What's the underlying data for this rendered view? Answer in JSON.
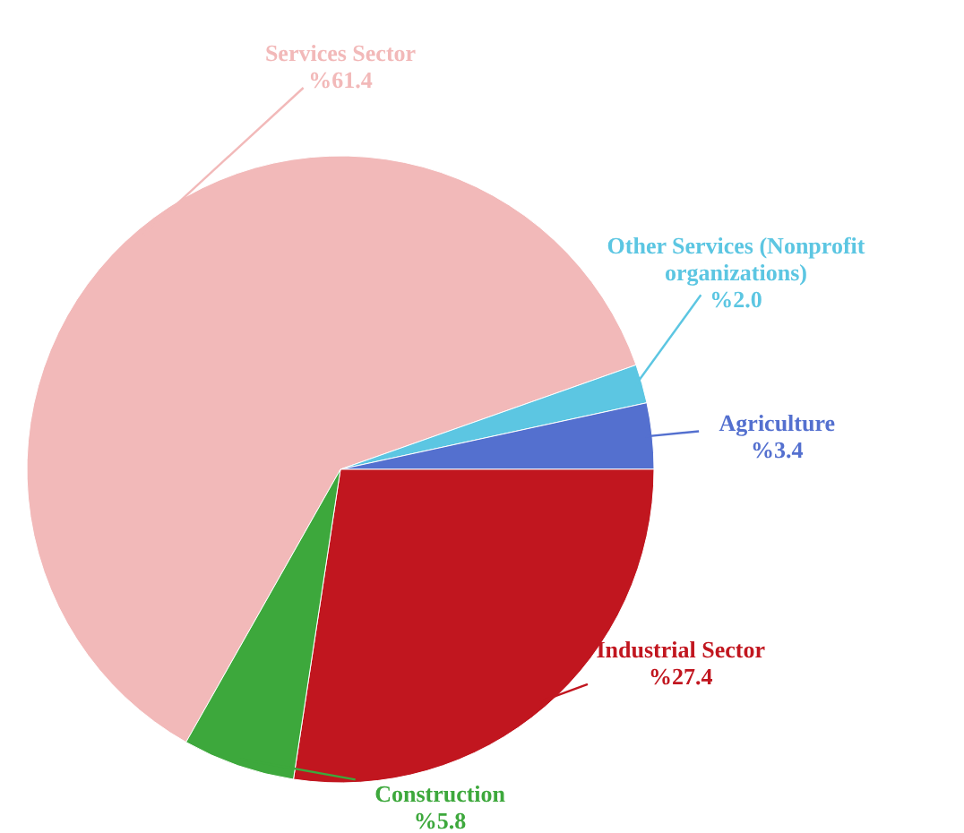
{
  "chart_data": {
    "type": "pie",
    "categories": [
      "Services Sector",
      "Other Services (Nonprofit organizations)",
      "Agriculture",
      "Industrial Sector",
      "Construction"
    ],
    "values": [
      61.4,
      2.0,
      3.4,
      27.4,
      5.8
    ],
    "value_labels": [
      "%61.4",
      "%2.0",
      "%3.4",
      "%27.4",
      "%5.8"
    ],
    "colors": [
      "#f2b9b9",
      "#5cc6e2",
      "#5470cf",
      "#c1161f",
      "#3da83c"
    ]
  }
}
